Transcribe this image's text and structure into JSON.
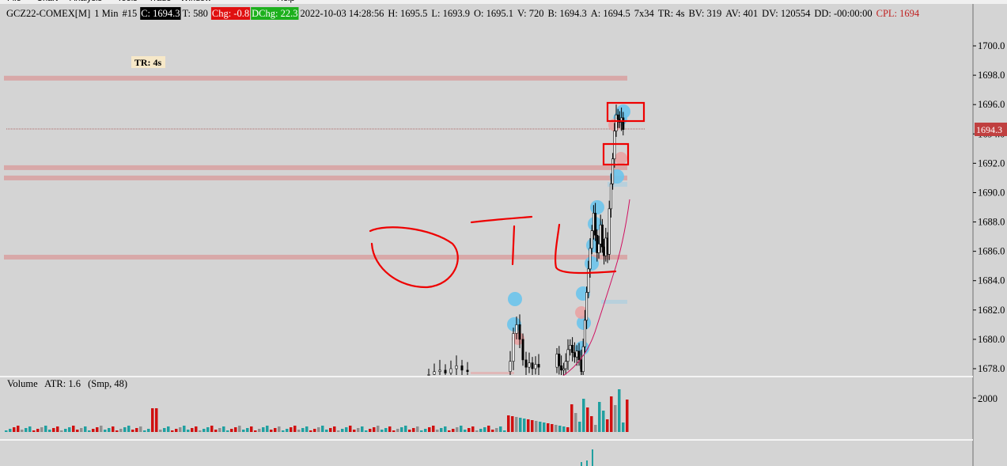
{
  "menu": [
    "File",
    "Chart",
    "Analysis",
    "Tools",
    "Trade",
    "Window",
    "Help"
  ],
  "header": {
    "symbol": "GCZ22-COMEX[M]",
    "timeframe": "1 Min",
    "chart_number": "#15",
    "close": "C: 1694.3",
    "ticks": "T: 580",
    "change": "Chg: -0.8",
    "daily_change": "DChg: 22.3",
    "datetime": "2022-10-03 14:28:56",
    "high": "H: 1695.5",
    "low": "L: 1693.9",
    "open": "O: 1695.1",
    "volume": "V: 720",
    "bid": "B: 1694.3",
    "ask": "A: 1694.5",
    "size": "7x34",
    "tr": "TR: 4s",
    "bid_volume": "BV: 319",
    "ask_volume": "AV: 401",
    "delta_volume": "DV: 120554",
    "dd": "DD: -00:00:00",
    "cpl": "CPL: 1694"
  },
  "colors": {
    "close_bg": "#000000",
    "change_bg": "#e01010",
    "daily_change_bg": "#1cb01c",
    "cpl_text": "#c02020",
    "last_price_bg": "#c04040",
    "volume_up": "#20a0a0",
    "volume_down": "#d01010",
    "volume_neutral": "#909090",
    "annotation": "#ee0000",
    "level_line": "#d8a8a8",
    "bubble_blue": "#6cc4ec",
    "bubble_red": "#eaa0a0",
    "ma_line": "#d01060"
  },
  "tr_label": "TR: 4s",
  "price_axis": {
    "labels": [
      "1700.0",
      "1698.0",
      "1696.0",
      "1694.0",
      "1692.0",
      "1690.0",
      "1688.0",
      "1686.0",
      "1684.0",
      "1682.0",
      "1680.0",
      "1678.0"
    ],
    "current_price_label": "1694.3",
    "current_price": 1694.3
  },
  "volume_panel": {
    "title": "Volume",
    "atr_label": "ATR: 1.6",
    "params": "(Smp, 48)",
    "axis_label": "2000"
  },
  "horizontal_levels": [
    1697.8,
    1691.7,
    1691.0,
    1685.6
  ],
  "chart_data": {
    "type": "candlestick",
    "title": "GCZ22-COMEX[M] 1 Min",
    "y_axis": [
      1678.0,
      1700.0
    ],
    "closes": [
      1677.6,
      1677.8,
      1677.9,
      1677.7,
      1678.0,
      1678.2,
      1677.9,
      1677.8,
      1678.5,
      1680.4,
      1681.0,
      1680.0,
      1678.6,
      1678.1,
      1678.4,
      1678.0,
      1678.3,
      1678.1,
      1679.0,
      1678.2,
      1677.9,
      1678.0,
      1678.5,
      1679.3,
      1679.6,
      1679.1,
      1678.8,
      1679.2,
      1678.6,
      1678.0,
      1677.8,
      1679.5,
      1681.3,
      1683.2,
      1684.8,
      1686.2,
      1687.4,
      1688.6,
      1687.1,
      1685.9,
      1686.5,
      1687.8,
      1686.3,
      1685.7,
      1686.9,
      1685.8,
      1688.9,
      1690.6,
      1692.3,
      1694.2,
      1695.3,
      1695.0,
      1694.8,
      1695.1,
      1694.3
    ]
  }
}
